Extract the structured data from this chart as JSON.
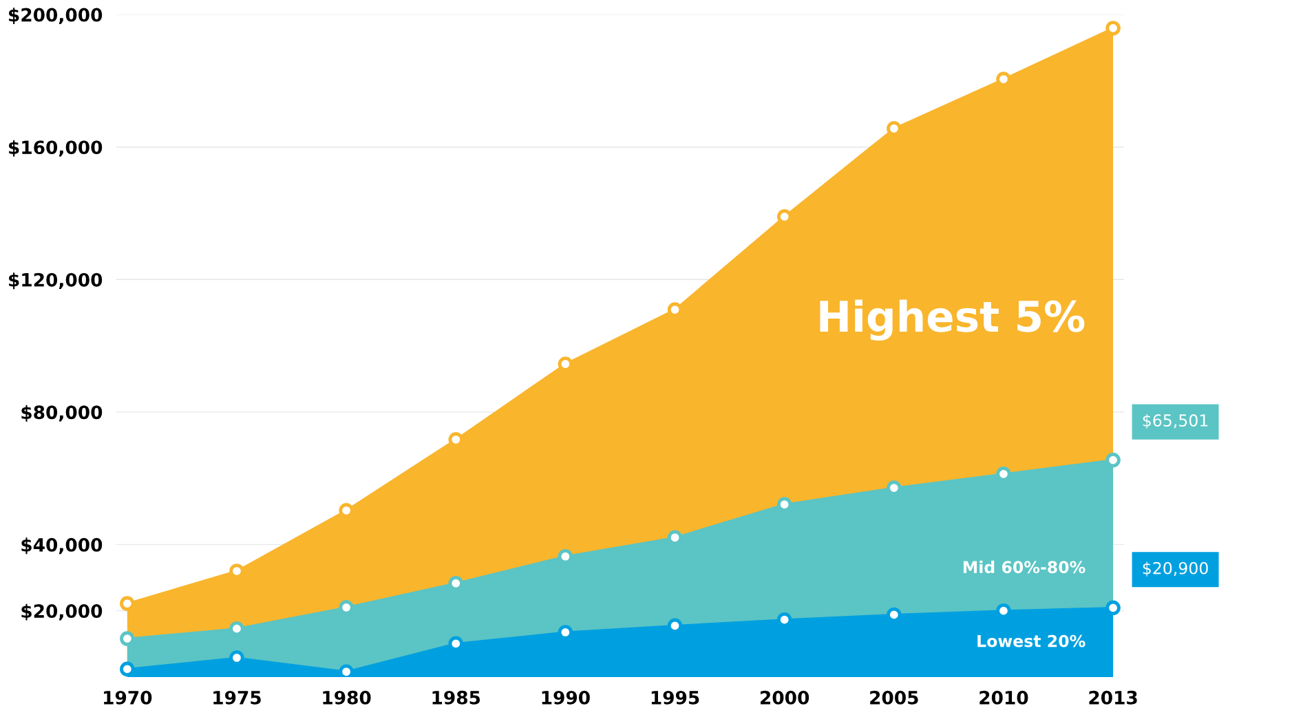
{
  "chart_data": {
    "type": "area",
    "categories": [
      "1970",
      "1975",
      "1980",
      "1985",
      "1990",
      "1995",
      "2000",
      "2005",
      "2010",
      "2013"
    ],
    "series": [
      {
        "name": "Highest 5%",
        "color": "#f9b52c",
        "values": [
          22200,
          32000,
          50300,
          71700,
          94500,
          110900,
          139000,
          165600,
          180500,
          195900
        ]
      },
      {
        "name": "Mid 60%-80%",
        "color": "#5bc4c4",
        "values": [
          11600,
          14600,
          21000,
          28300,
          36400,
          42100,
          52100,
          57100,
          61300,
          65501
        ],
        "value_labels": [
          null,
          null,
          null,
          null,
          null,
          null,
          null,
          null,
          null,
          "$65,501"
        ]
      },
      {
        "name": "Lowest 20%",
        "color": "#00a0e0",
        "values": [
          2400,
          5800,
          1600,
          10100,
          13500,
          15500,
          17300,
          18800,
          20000,
          20900
        ],
        "value_labels": [
          null,
          null,
          null,
          null,
          null,
          null,
          null,
          null,
          null,
          "$20,900"
        ]
      }
    ],
    "ylim": [
      0,
      200000
    ],
    "yticks": [
      {
        "value": 20000,
        "label": "$20,000"
      },
      {
        "value": 40000,
        "label": "$40,000"
      },
      {
        "value": 80000,
        "label": "$80,000"
      },
      {
        "value": 120000,
        "label": "$120,000"
      },
      {
        "value": 160000,
        "label": "$160,000"
      },
      {
        "value": 200000,
        "label": "$200,000"
      }
    ],
    "grid": "y",
    "marker": "circle",
    "legend": false
  }
}
